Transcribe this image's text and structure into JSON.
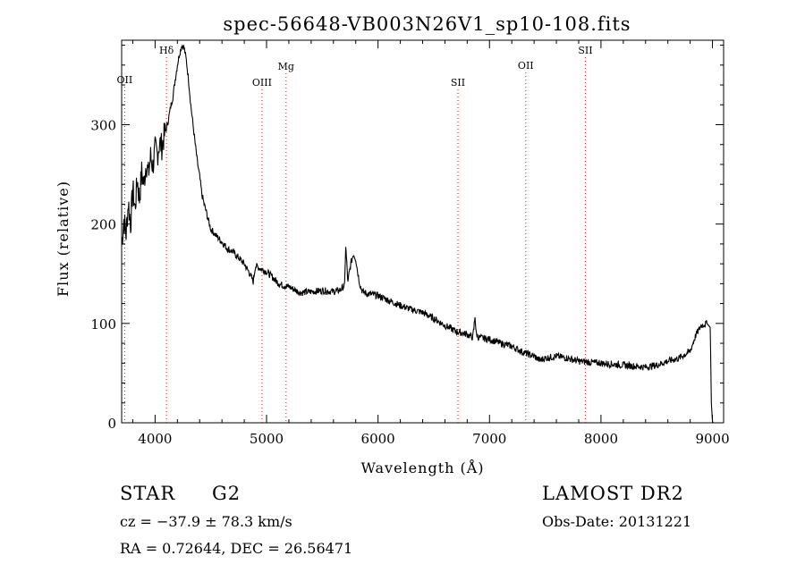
{
  "chart_data": {
    "type": "line",
    "title": "spec-56648-VB003N26V1_sp10-108.fits",
    "xlabel": "Wavelength (Å)",
    "ylabel": "Flux (relative)",
    "xlim": [
      3700,
      9100
    ],
    "ylim": [
      0,
      385
    ],
    "x_ticks": [
      4000,
      5000,
      6000,
      7000,
      8000,
      9000
    ],
    "y_ticks": [
      0,
      100,
      200,
      300
    ],
    "grid": false,
    "series": [
      {
        "x": [
          3700,
          3720,
          3740,
          3760,
          3780,
          3800,
          3820,
          3840,
          3860,
          3880,
          3900,
          3920,
          3940,
          3960,
          3980,
          4000,
          4020,
          4040,
          4060,
          4080,
          4100,
          4120,
          4140,
          4160,
          4180,
          4200,
          4220,
          4240,
          4260,
          4280,
          4300,
          4320,
          4340,
          4360,
          4380,
          4400,
          4420,
          4440,
          4460,
          4480,
          4500,
          4550,
          4600,
          4650,
          4700,
          4750,
          4800,
          4850,
          4880,
          4900,
          4950,
          5000,
          5050,
          5100,
          5150,
          5200,
          5250,
          5300,
          5400,
          5500,
          5600,
          5650,
          5700,
          5710,
          5720,
          5730,
          5740,
          5760,
          5780,
          5800,
          5820,
          5840,
          5860,
          5900,
          6000,
          6100,
          6200,
          6300,
          6400,
          6500,
          6600,
          6700,
          6800,
          6850,
          6860,
          6870,
          6880,
          6900,
          7000,
          7100,
          7200,
          7300,
          7400,
          7450,
          7500,
          7600,
          7700,
          7800,
          7900,
          8000,
          8100,
          8200,
          8300,
          8400,
          8500,
          8600,
          8700,
          8800,
          8850,
          8900,
          8950,
          8980,
          8990,
          9000,
          9005
        ],
        "y": [
          180,
          205,
          190,
          222,
          200,
          235,
          215,
          245,
          225,
          252,
          240,
          262,
          250,
          268,
          258,
          275,
          270,
          282,
          278,
          288,
          296,
          305,
          318,
          328,
          345,
          360,
          372,
          380,
          378,
          365,
          345,
          320,
          300,
          280,
          262,
          248,
          230,
          220,
          212,
          203,
          195,
          188,
          182,
          175,
          172,
          166,
          160,
          150,
          142,
          158,
          155,
          152,
          147,
          141,
          138,
          137,
          134,
          131,
          132,
          133,
          132,
          133,
          138,
          178,
          160,
          140,
          150,
          162,
          170,
          165,
          150,
          138,
          132,
          130,
          128,
          123,
          118,
          114,
          111,
          105,
          98,
          92,
          89,
          86,
          95,
          108,
          90,
          86,
          84,
          80,
          77,
          71,
          67,
          63,
          65,
          67,
          65,
          62,
          61,
          60,
          59,
          58,
          57,
          56,
          58,
          62,
          65,
          72,
          88,
          98,
          100,
          96,
          20,
          2,
          0
        ]
      }
    ],
    "lines": [
      {
        "label": "OII",
        "x": 3727
      },
      {
        "label": "Hδ",
        "x": 4102
      },
      {
        "label": "OIII",
        "x": 4959
      },
      {
        "label": "Mg",
        "x": 5175
      },
      {
        "label": "SII",
        "x": 6717
      },
      {
        "label": "OII",
        "x": 7325
      },
      {
        "label": "SII",
        "x": 7860
      }
    ]
  },
  "footer": {
    "object_type": "STAR",
    "subclass": "G2",
    "survey": "LAMOST DR2",
    "redshift_text": "cz = −37.9 ± 78.3 km/s",
    "obs_date": "Obs-Date: 20131221",
    "coords": "RA =    0.72644, DEC =   26.56471"
  }
}
